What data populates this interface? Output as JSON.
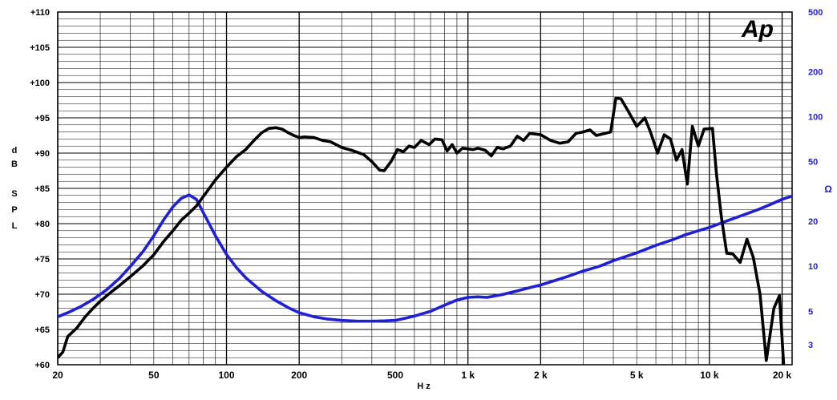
{
  "chart_data": {
    "type": "line",
    "logo": "Ap",
    "xlabel": "Hz",
    "ylabel": "dB SPL",
    "y2label": "Ω",
    "xscale": "log",
    "y2scale": "log",
    "xlim": [
      20,
      22000
    ],
    "ylim": [
      60,
      110
    ],
    "y2lim": [
      2.2,
      500
    ],
    "grid": true,
    "x_ticks": [
      {
        "value": 20,
        "label": "20"
      },
      {
        "value": 50,
        "label": "50"
      },
      {
        "value": 100,
        "label": "100"
      },
      {
        "value": 200,
        "label": "200"
      },
      {
        "value": 500,
        "label": "500"
      },
      {
        "value": 1000,
        "label": "1 k"
      },
      {
        "value": 2000,
        "label": "2 k"
      },
      {
        "value": 5000,
        "label": "5 k"
      },
      {
        "value": 10000,
        "label": "10 k"
      },
      {
        "value": 20000,
        "label": "20 k"
      }
    ],
    "y_ticks": [
      {
        "value": 110,
        "label": "+110"
      },
      {
        "value": 105,
        "label": "+105"
      },
      {
        "value": 100,
        "label": "+100"
      },
      {
        "value": 95,
        "label": "+95"
      },
      {
        "value": 90,
        "label": "+90"
      },
      {
        "value": 85,
        "label": "+85"
      },
      {
        "value": 80,
        "label": "+80"
      },
      {
        "value": 75,
        "label": "+75"
      },
      {
        "value": 70,
        "label": "+70"
      },
      {
        "value": 65,
        "label": "+65"
      },
      {
        "value": 60,
        "label": "+60"
      }
    ],
    "y2_ticks": [
      {
        "value": 500,
        "label": "500"
      },
      {
        "value": 200,
        "label": "200"
      },
      {
        "value": 100,
        "label": "100"
      },
      {
        "value": 50,
        "label": "50"
      },
      {
        "value": 20,
        "label": "20"
      },
      {
        "value": 10,
        "label": "10"
      },
      {
        "value": 5,
        "label": "5"
      },
      {
        "value": 3,
        "label": "3"
      }
    ],
    "series": [
      {
        "axis": "left",
        "color": "#000000",
        "points": [
          [
            20,
            61.0
          ],
          [
            21,
            61.8
          ],
          [
            22,
            64.0
          ],
          [
            24,
            65.2
          ],
          [
            26,
            66.8
          ],
          [
            28,
            68.0
          ],
          [
            30,
            69.0
          ],
          [
            33,
            70.2
          ],
          [
            36,
            71.2
          ],
          [
            40,
            72.5
          ],
          [
            45,
            74.0
          ],
          [
            50,
            75.6
          ],
          [
            55,
            77.5
          ],
          [
            60,
            79.0
          ],
          [
            65,
            80.5
          ],
          [
            70,
            81.5
          ],
          [
            75,
            82.5
          ],
          [
            80,
            83.8
          ],
          [
            90,
            86.2
          ],
          [
            100,
            88.0
          ],
          [
            110,
            89.5
          ],
          [
            120,
            90.5
          ],
          [
            130,
            91.8
          ],
          [
            140,
            92.9
          ],
          [
            150,
            93.5
          ],
          [
            160,
            93.6
          ],
          [
            170,
            93.4
          ],
          [
            180,
            92.9
          ],
          [
            190,
            92.5
          ],
          [
            200,
            92.2
          ],
          [
            210,
            92.3
          ],
          [
            230,
            92.2
          ],
          [
            250,
            91.8
          ],
          [
            270,
            91.6
          ],
          [
            300,
            90.8
          ],
          [
            330,
            90.4
          ],
          [
            370,
            89.8
          ],
          [
            400,
            88.8
          ],
          [
            430,
            87.6
          ],
          [
            450,
            87.5
          ],
          [
            480,
            88.8
          ],
          [
            510,
            90.5
          ],
          [
            540,
            90.2
          ],
          [
            570,
            91.0
          ],
          [
            600,
            90.8
          ],
          [
            640,
            91.8
          ],
          [
            690,
            91.2
          ],
          [
            730,
            92.0
          ],
          [
            780,
            91.9
          ],
          [
            820,
            90.3
          ],
          [
            860,
            91.2
          ],
          [
            900,
            90.0
          ],
          [
            950,
            90.7
          ],
          [
            1000,
            90.6
          ],
          [
            1050,
            90.5
          ],
          [
            1100,
            90.7
          ],
          [
            1180,
            90.4
          ],
          [
            1250,
            89.6
          ],
          [
            1320,
            90.8
          ],
          [
            1400,
            90.6
          ],
          [
            1500,
            91.0
          ],
          [
            1600,
            92.4
          ],
          [
            1700,
            91.8
          ],
          [
            1800,
            92.8
          ],
          [
            1900,
            92.7
          ],
          [
            2000,
            92.6
          ],
          [
            2200,
            91.8
          ],
          [
            2400,
            91.4
          ],
          [
            2600,
            91.6
          ],
          [
            2800,
            92.8
          ],
          [
            3000,
            93.0
          ],
          [
            3200,
            93.3
          ],
          [
            3400,
            92.5
          ],
          [
            3700,
            92.8
          ],
          [
            3900,
            93.0
          ],
          [
            4100,
            97.8
          ],
          [
            4300,
            97.7
          ],
          [
            4600,
            96.0
          ],
          [
            5000,
            93.8
          ],
          [
            5400,
            95.0
          ],
          [
            5700,
            93.0
          ],
          [
            6100,
            90.0
          ],
          [
            6500,
            92.6
          ],
          [
            6900,
            92.0
          ],
          [
            7300,
            89.0
          ],
          [
            7700,
            90.5
          ],
          [
            8100,
            85.6
          ],
          [
            8500,
            93.8
          ],
          [
            9000,
            91.0
          ],
          [
            9500,
            93.4
          ],
          [
            10300,
            93.5
          ],
          [
            10700,
            87.0
          ],
          [
            11200,
            81.0
          ],
          [
            11800,
            75.8
          ],
          [
            12500,
            75.7
          ],
          [
            13400,
            74.5
          ],
          [
            14300,
            77.8
          ],
          [
            15200,
            75.2
          ],
          [
            16200,
            70.0
          ],
          [
            17200,
            60.6
          ],
          [
            18500,
            68.0
          ],
          [
            19500,
            69.8
          ],
          [
            20300,
            60.0
          ]
        ]
      },
      {
        "axis": "right",
        "color": "#1f1fd6",
        "points": [
          [
            20,
            4.6
          ],
          [
            22,
            4.9
          ],
          [
            25,
            5.4
          ],
          [
            28,
            6.0
          ],
          [
            32,
            7.0
          ],
          [
            36,
            8.3
          ],
          [
            40,
            10.0
          ],
          [
            45,
            12.5
          ],
          [
            50,
            16.0
          ],
          [
            55,
            20.5
          ],
          [
            60,
            25.0
          ],
          [
            65,
            28.5
          ],
          [
            70,
            30.0
          ],
          [
            75,
            28.0
          ],
          [
            80,
            23.0
          ],
          [
            90,
            16.0
          ],
          [
            100,
            12.0
          ],
          [
            110,
            9.8
          ],
          [
            120,
            8.4
          ],
          [
            140,
            6.8
          ],
          [
            160,
            5.9
          ],
          [
            180,
            5.3
          ],
          [
            200,
            4.9
          ],
          [
            230,
            4.6
          ],
          [
            260,
            4.45
          ],
          [
            300,
            4.35
          ],
          [
            350,
            4.3
          ],
          [
            400,
            4.3
          ],
          [
            450,
            4.32
          ],
          [
            500,
            4.35
          ],
          [
            550,
            4.5
          ],
          [
            600,
            4.65
          ],
          [
            700,
            5.0
          ],
          [
            800,
            5.5
          ],
          [
            900,
            5.95
          ],
          [
            1000,
            6.2
          ],
          [
            1100,
            6.25
          ],
          [
            1200,
            6.2
          ],
          [
            1400,
            6.5
          ],
          [
            1600,
            6.85
          ],
          [
            1800,
            7.2
          ],
          [
            2000,
            7.5
          ],
          [
            2500,
            8.4
          ],
          [
            3000,
            9.3
          ],
          [
            3500,
            10.0
          ],
          [
            4000,
            10.9
          ],
          [
            5000,
            12.3
          ],
          [
            6000,
            13.8
          ],
          [
            7000,
            15.0
          ],
          [
            8000,
            16.3
          ],
          [
            9000,
            17.3
          ],
          [
            10000,
            18.2
          ],
          [
            12000,
            20.3
          ],
          [
            14000,
            22.2
          ],
          [
            16000,
            24.0
          ],
          [
            18000,
            26.0
          ],
          [
            20000,
            28.0
          ],
          [
            22000,
            29.5
          ]
        ]
      }
    ]
  }
}
